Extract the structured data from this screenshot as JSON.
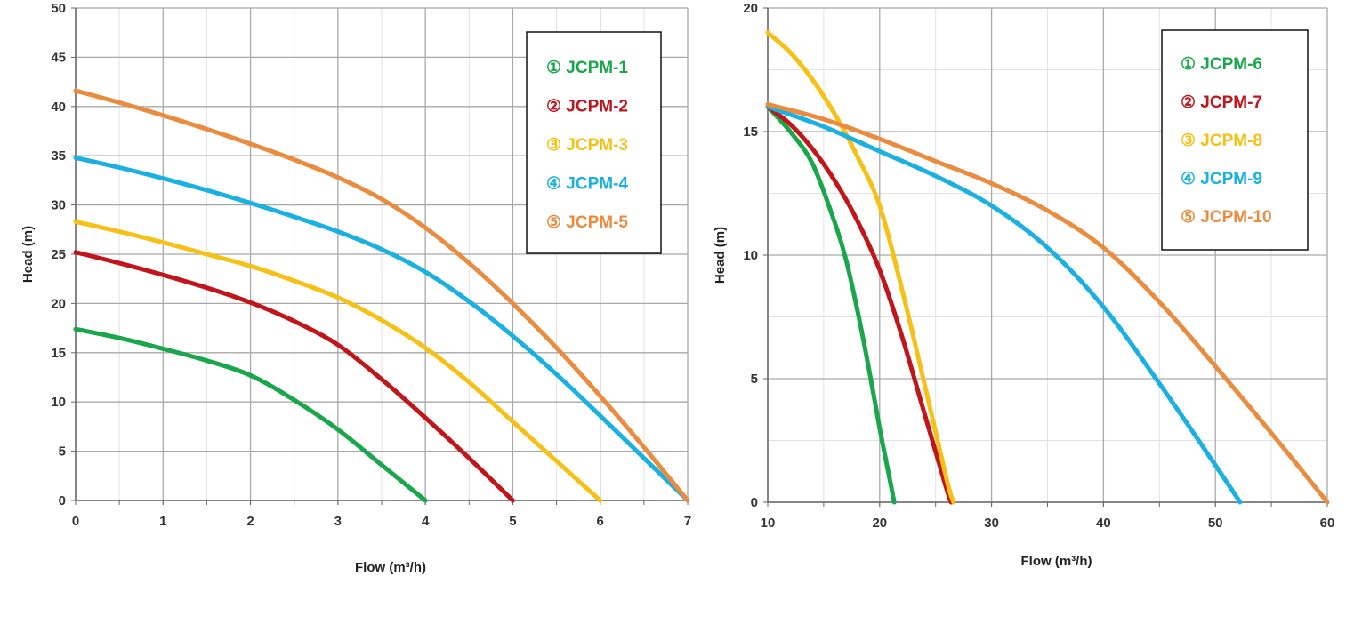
{
  "chart_data": [
    {
      "type": "line",
      "xlabel": "Flow (m³/h)",
      "ylabel": "Head (m)",
      "xlim": [
        0,
        7
      ],
      "ylim": [
        0,
        50
      ],
      "xticks": [
        0,
        1,
        2,
        3,
        4,
        5,
        6,
        7
      ],
      "yticks": [
        0,
        5,
        10,
        15,
        20,
        25,
        30,
        35,
        40,
        45,
        50
      ],
      "grid": true,
      "legend_position": "top-right",
      "series": [
        {
          "name": "① JCPM-1",
          "color": "#1aa64b",
          "x": [
            0,
            0.5,
            1,
            1.5,
            2,
            2.5,
            3,
            3.5,
            4
          ],
          "y": [
            17.4,
            16.5,
            15.4,
            14.2,
            12.7,
            10.2,
            7.2,
            3.6,
            0
          ]
        },
        {
          "name": "② JCPM-2",
          "color": "#c0151b",
          "x": [
            0,
            0.5,
            1,
            1.5,
            2,
            2.5,
            3,
            3.5,
            4,
            4.5,
            5
          ],
          "y": [
            25.2,
            24.1,
            22.9,
            21.6,
            20.1,
            18.2,
            15.8,
            12.3,
            8.4,
            4.3,
            0
          ]
        },
        {
          "name": "③ JCPM-3",
          "color": "#f5c116",
          "x": [
            0,
            0.5,
            1,
            1.5,
            2,
            2.5,
            3,
            3.5,
            4,
            4.5,
            5,
            5.5,
            6
          ],
          "y": [
            28.3,
            27.3,
            26.2,
            25.0,
            23.8,
            22.3,
            20.6,
            18.3,
            15.5,
            12.0,
            8.0,
            4.0,
            0
          ]
        },
        {
          "name": "④ JCPM-4",
          "color": "#1ab0e0",
          "x": [
            0,
            0.5,
            1,
            1.5,
            2,
            2.5,
            3,
            3.5,
            4,
            4.5,
            5,
            5.5,
            6,
            6.5,
            7
          ],
          "y": [
            34.8,
            33.8,
            32.7,
            31.5,
            30.2,
            28.8,
            27.3,
            25.5,
            23.2,
            20.2,
            16.7,
            12.8,
            8.6,
            4.3,
            0
          ]
        },
        {
          "name": "⑤ JCPM-5",
          "color": "#e98c3f",
          "x": [
            0,
            0.5,
            1,
            1.5,
            2,
            2.5,
            3,
            3.5,
            4,
            4.5,
            5,
            5.5,
            6,
            6.5,
            7
          ],
          "y": [
            41.6,
            40.4,
            39.1,
            37.7,
            36.2,
            34.6,
            32.8,
            30.6,
            27.7,
            24.1,
            20.0,
            15.5,
            10.6,
            5.4,
            0
          ]
        }
      ]
    },
    {
      "type": "line",
      "xlabel": "Flow (m³/h)",
      "ylabel": "Head (m)",
      "xlim": [
        10,
        60
      ],
      "ylim": [
        0,
        20
      ],
      "xticks": [
        10,
        20,
        30,
        40,
        50,
        60
      ],
      "yticks": [
        0,
        5,
        10,
        15,
        20
      ],
      "grid": true,
      "legend_position": "top-right",
      "series": [
        {
          "name": "① JCPM-6",
          "color": "#1aa64b",
          "x": [
            10,
            12,
            14,
            16,
            17,
            18,
            19,
            20,
            21,
            21.3
          ],
          "y": [
            16.0,
            15.0,
            13.7,
            11.3,
            9.8,
            7.8,
            5.5,
            3.0,
            0.7,
            0
          ]
        },
        {
          "name": "② JCPM-7",
          "color": "#c0151b",
          "x": [
            10,
            12,
            14,
            16,
            18,
            20,
            22,
            24,
            26,
            26.4
          ],
          "y": [
            16.0,
            15.3,
            14.3,
            13.0,
            11.4,
            9.4,
            6.7,
            3.6,
            0.5,
            0
          ]
        },
        {
          "name": "③ JCPM-8",
          "color": "#f5c116",
          "x": [
            10,
            12,
            14,
            16,
            18,
            20,
            22,
            24,
            26,
            26.6
          ],
          "y": [
            19.0,
            18.2,
            17.1,
            15.7,
            14.0,
            12.0,
            8.6,
            4.8,
            0.9,
            0
          ]
        },
        {
          "name": "④ JCPM-9",
          "color": "#1ab0e0",
          "x": [
            10,
            15,
            20,
            25,
            30,
            35,
            40,
            45,
            50,
            52.2
          ],
          "y": [
            16.0,
            15.2,
            14.2,
            13.2,
            12.0,
            10.3,
            7.9,
            4.8,
            1.5,
            0
          ]
        },
        {
          "name": "⑤ JCPM-10",
          "color": "#e98c3f",
          "x": [
            10,
            15,
            20,
            25,
            30,
            35,
            40,
            45,
            50,
            55,
            60
          ],
          "y": [
            16.1,
            15.5,
            14.7,
            13.8,
            12.9,
            11.8,
            10.3,
            8.1,
            5.5,
            2.8,
            0
          ]
        }
      ]
    }
  ]
}
